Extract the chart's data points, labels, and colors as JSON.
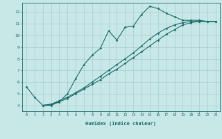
{
  "xlabel": "Humidex (Indice chaleur)",
  "bg_color": "#c8e8e8",
  "line_color": "#1a6b6b",
  "grid_color": "#a8cccc",
  "xlim": [
    -0.5,
    23.5
  ],
  "ylim": [
    3.5,
    12.8
  ],
  "xticks": [
    0,
    1,
    2,
    3,
    4,
    5,
    6,
    7,
    8,
    9,
    10,
    11,
    12,
    13,
    14,
    15,
    16,
    17,
    18,
    19,
    20,
    21,
    22,
    23
  ],
  "yticks": [
    4,
    5,
    6,
    7,
    8,
    9,
    10,
    11,
    12
  ],
  "series1": [
    [
      0,
      5.6
    ],
    [
      1,
      4.7
    ],
    [
      2,
      4.0
    ],
    [
      3,
      4.0
    ],
    [
      4,
      4.3
    ],
    [
      5,
      5.0
    ],
    [
      6,
      6.3
    ],
    [
      7,
      7.5
    ],
    [
      8,
      8.3
    ],
    [
      9,
      8.9
    ],
    [
      10,
      10.4
    ],
    [
      11,
      9.6
    ],
    [
      12,
      10.7
    ],
    [
      13,
      10.8
    ],
    [
      14,
      11.8
    ],
    [
      15,
      12.5
    ],
    [
      16,
      12.3
    ],
    [
      17,
      11.9
    ],
    [
      18,
      11.6
    ],
    [
      19,
      11.3
    ],
    [
      20,
      11.3
    ],
    [
      21,
      11.3
    ],
    [
      22,
      11.2
    ],
    [
      23,
      11.2
    ]
  ],
  "series2": [
    [
      2,
      4.0
    ],
    [
      3,
      4.1
    ],
    [
      4,
      4.3
    ],
    [
      5,
      4.6
    ],
    [
      6,
      5.0
    ],
    [
      7,
      5.4
    ],
    [
      8,
      5.8
    ],
    [
      9,
      6.2
    ],
    [
      10,
      6.7
    ],
    [
      11,
      7.1
    ],
    [
      12,
      7.6
    ],
    [
      13,
      8.1
    ],
    [
      14,
      8.6
    ],
    [
      15,
      9.1
    ],
    [
      16,
      9.6
    ],
    [
      17,
      10.1
    ],
    [
      18,
      10.5
    ],
    [
      19,
      10.9
    ],
    [
      20,
      11.1
    ],
    [
      21,
      11.2
    ],
    [
      22,
      11.2
    ],
    [
      23,
      11.2
    ]
  ],
  "series3": [
    [
      2,
      4.0
    ],
    [
      3,
      4.1
    ],
    [
      4,
      4.4
    ],
    [
      5,
      4.7
    ],
    [
      6,
      5.1
    ],
    [
      7,
      5.5
    ],
    [
      8,
      6.0
    ],
    [
      9,
      6.5
    ],
    [
      10,
      7.0
    ],
    [
      11,
      7.5
    ],
    [
      12,
      8.0
    ],
    [
      13,
      8.5
    ],
    [
      14,
      9.1
    ],
    [
      15,
      9.7
    ],
    [
      16,
      10.2
    ],
    [
      17,
      10.6
    ],
    [
      18,
      10.9
    ],
    [
      19,
      11.1
    ],
    [
      20,
      11.2
    ],
    [
      21,
      11.2
    ],
    [
      22,
      11.2
    ],
    [
      23,
      11.2
    ]
  ]
}
